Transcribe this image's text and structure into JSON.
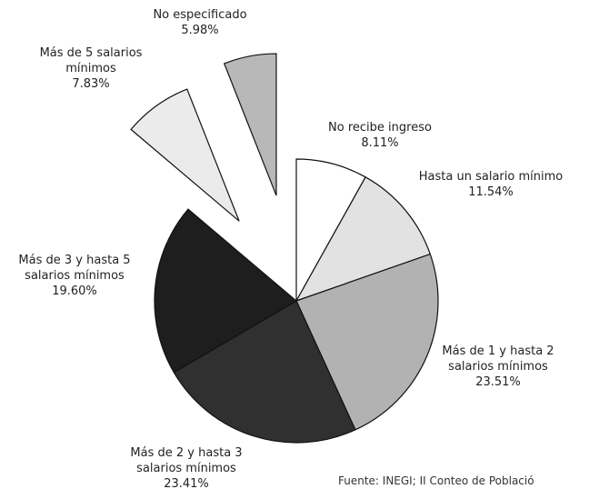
{
  "chart_data": {
    "type": "pie",
    "categories": [
      "No recibe ingreso",
      "Hasta un salario mínimo",
      "Más de 1 y hasta 2 salarios mínimos",
      "Más de 2 y hasta 3 salarios mínimos",
      "Más de 3 y hasta 5 salarios mínimos",
      "Más de 5 salarios mínimos",
      "No especificado"
    ],
    "values": [
      8.11,
      11.54,
      23.51,
      23.41,
      19.6,
      7.83,
      5.98
    ],
    "value_labels": [
      "8.11%",
      "11.54%",
      "23.51%",
      "23.41%",
      "19.60%",
      "7.83%",
      "5.98%"
    ],
    "colors": [
      "#ffffff",
      "#e2e2e2",
      "#b2b2b2",
      "#303030",
      "#1e1e1e",
      "#ebebeb",
      "#b8b8b8"
    ],
    "source": "Fuente:  INEGI; II Conteo de Població"
  }
}
